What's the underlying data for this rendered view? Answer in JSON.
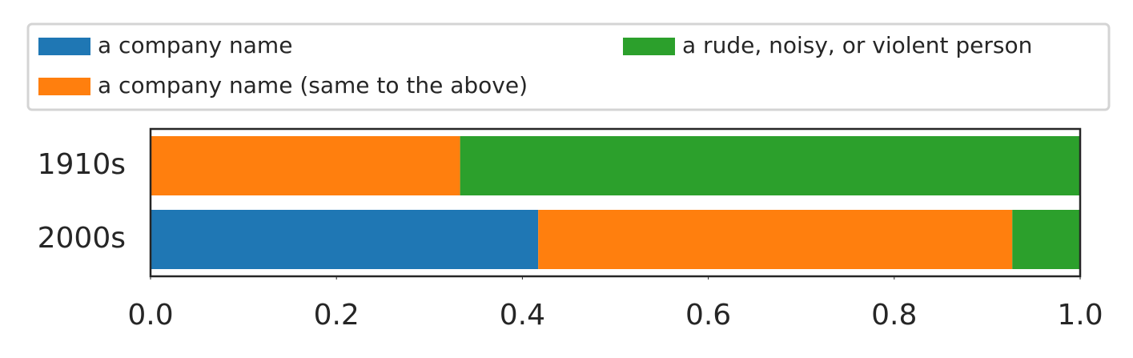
{
  "chart_data": {
    "type": "stacked-barh",
    "categories": [
      "1910s",
      "2000s"
    ],
    "series": [
      {
        "name": "a company name",
        "color": "#1f77b4",
        "values": [
          0,
          0.417
        ]
      },
      {
        "name": "a company name (same to the above)",
        "color": "#ff7f0e",
        "values": [
          0.333,
          0.51
        ]
      },
      {
        "name": "a rude, noisy, or violent person",
        "color": "#2ca02c",
        "values": [
          0.667,
          0.073
        ]
      }
    ],
    "xlim": [
      0,
      1
    ],
    "xticks": [
      {
        "value": 0,
        "label": "0.0"
      },
      0.2,
      0.4,
      0.6,
      0.8,
      {
        "value": 1,
        "label": "1.0"
      }
    ],
    "grid": false
  }
}
